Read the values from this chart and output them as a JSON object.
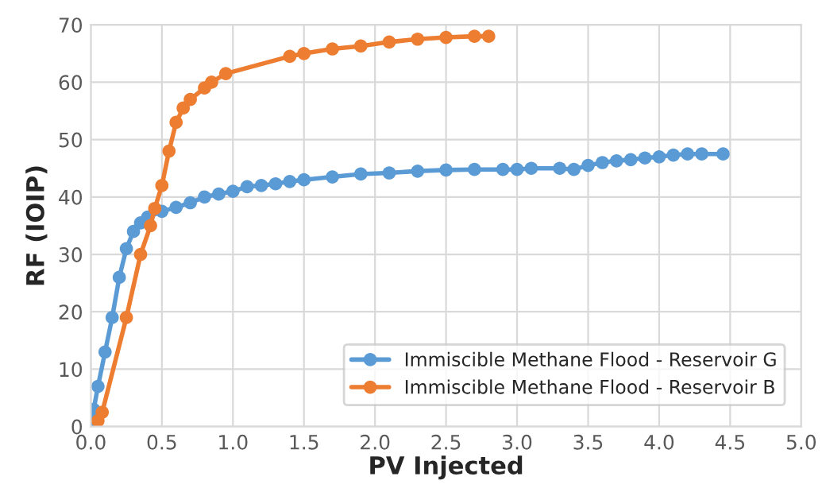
{
  "chart_data": {
    "type": "line",
    "xlabel": "PV Injected",
    "ylabel": "RF (IOIP)",
    "xlim": [
      0,
      5
    ],
    "xticks": [
      {
        "value": 0,
        "label": "0.0"
      },
      {
        "value": 0.5,
        "label": "0.5"
      },
      {
        "value": 1,
        "label": "1.0"
      },
      {
        "value": 1.5,
        "label": "1.5"
      },
      {
        "value": 2,
        "label": "2.0"
      },
      {
        "value": 2.5,
        "label": "2.5"
      },
      {
        "value": 3,
        "label": "3.0"
      },
      {
        "value": 3.5,
        "label": "3.5"
      },
      {
        "value": 4,
        "label": "4.0"
      },
      {
        "value": 4.5,
        "label": "4.5"
      },
      {
        "value": 5,
        "label": "5.0"
      }
    ],
    "ylim": [
      0,
      70
    ],
    "yticks": [
      0,
      10,
      20,
      30,
      40,
      50,
      60,
      70
    ],
    "grid": true,
    "legend": "bottom right",
    "marker": "circle",
    "line_style": "solid",
    "series": [
      {
        "name": "Immiscible Methane Flood - Reservoir G",
        "color": "#5b9bd5",
        "x": [
          0,
          0.02,
          0.05,
          0.1,
          0.15,
          0.2,
          0.25,
          0.3,
          0.35,
          0.4,
          0.5,
          0.6,
          0.7,
          0.8,
          0.9,
          1.0,
          1.1,
          1.2,
          1.3,
          1.4,
          1.5,
          1.7,
          1.9,
          2.1,
          2.3,
          2.5,
          2.7,
          2.9,
          3.0,
          3.1,
          3.3,
          3.4,
          3.5,
          3.6,
          3.7,
          3.8,
          3.9,
          4.0,
          4.1,
          4.2,
          4.3,
          4.45
        ],
        "values": [
          0,
          3,
          7,
          13,
          19,
          26,
          31,
          34,
          35.5,
          36.5,
          37.5,
          38.2,
          39,
          40,
          40.5,
          41,
          41.8,
          42,
          42.3,
          42.7,
          43,
          43.5,
          44,
          44.2,
          44.5,
          44.7,
          44.8,
          44.8,
          44.8,
          45,
          45,
          44.8,
          45.5,
          46,
          46.3,
          46.5,
          46.8,
          47,
          47.3,
          47.5,
          47.5,
          47.5
        ]
      },
      {
        "name": "Immiscible Methane Flood - Reservoir B",
        "color": "#ed7d31",
        "x": [
          0.05,
          0.08,
          0.25,
          0.35,
          0.42,
          0.45,
          0.5,
          0.55,
          0.6,
          0.65,
          0.7,
          0.8,
          0.85,
          0.95,
          1.4,
          1.5,
          1.7,
          1.9,
          2.1,
          2.3,
          2.5,
          2.7,
          2.8
        ],
        "values": [
          1,
          2.5,
          19,
          30,
          35,
          38,
          42,
          48,
          53,
          55.5,
          57,
          59,
          60,
          61.5,
          64.5,
          65,
          65.8,
          66.3,
          67,
          67.5,
          67.8,
          68,
          68
        ]
      }
    ]
  }
}
